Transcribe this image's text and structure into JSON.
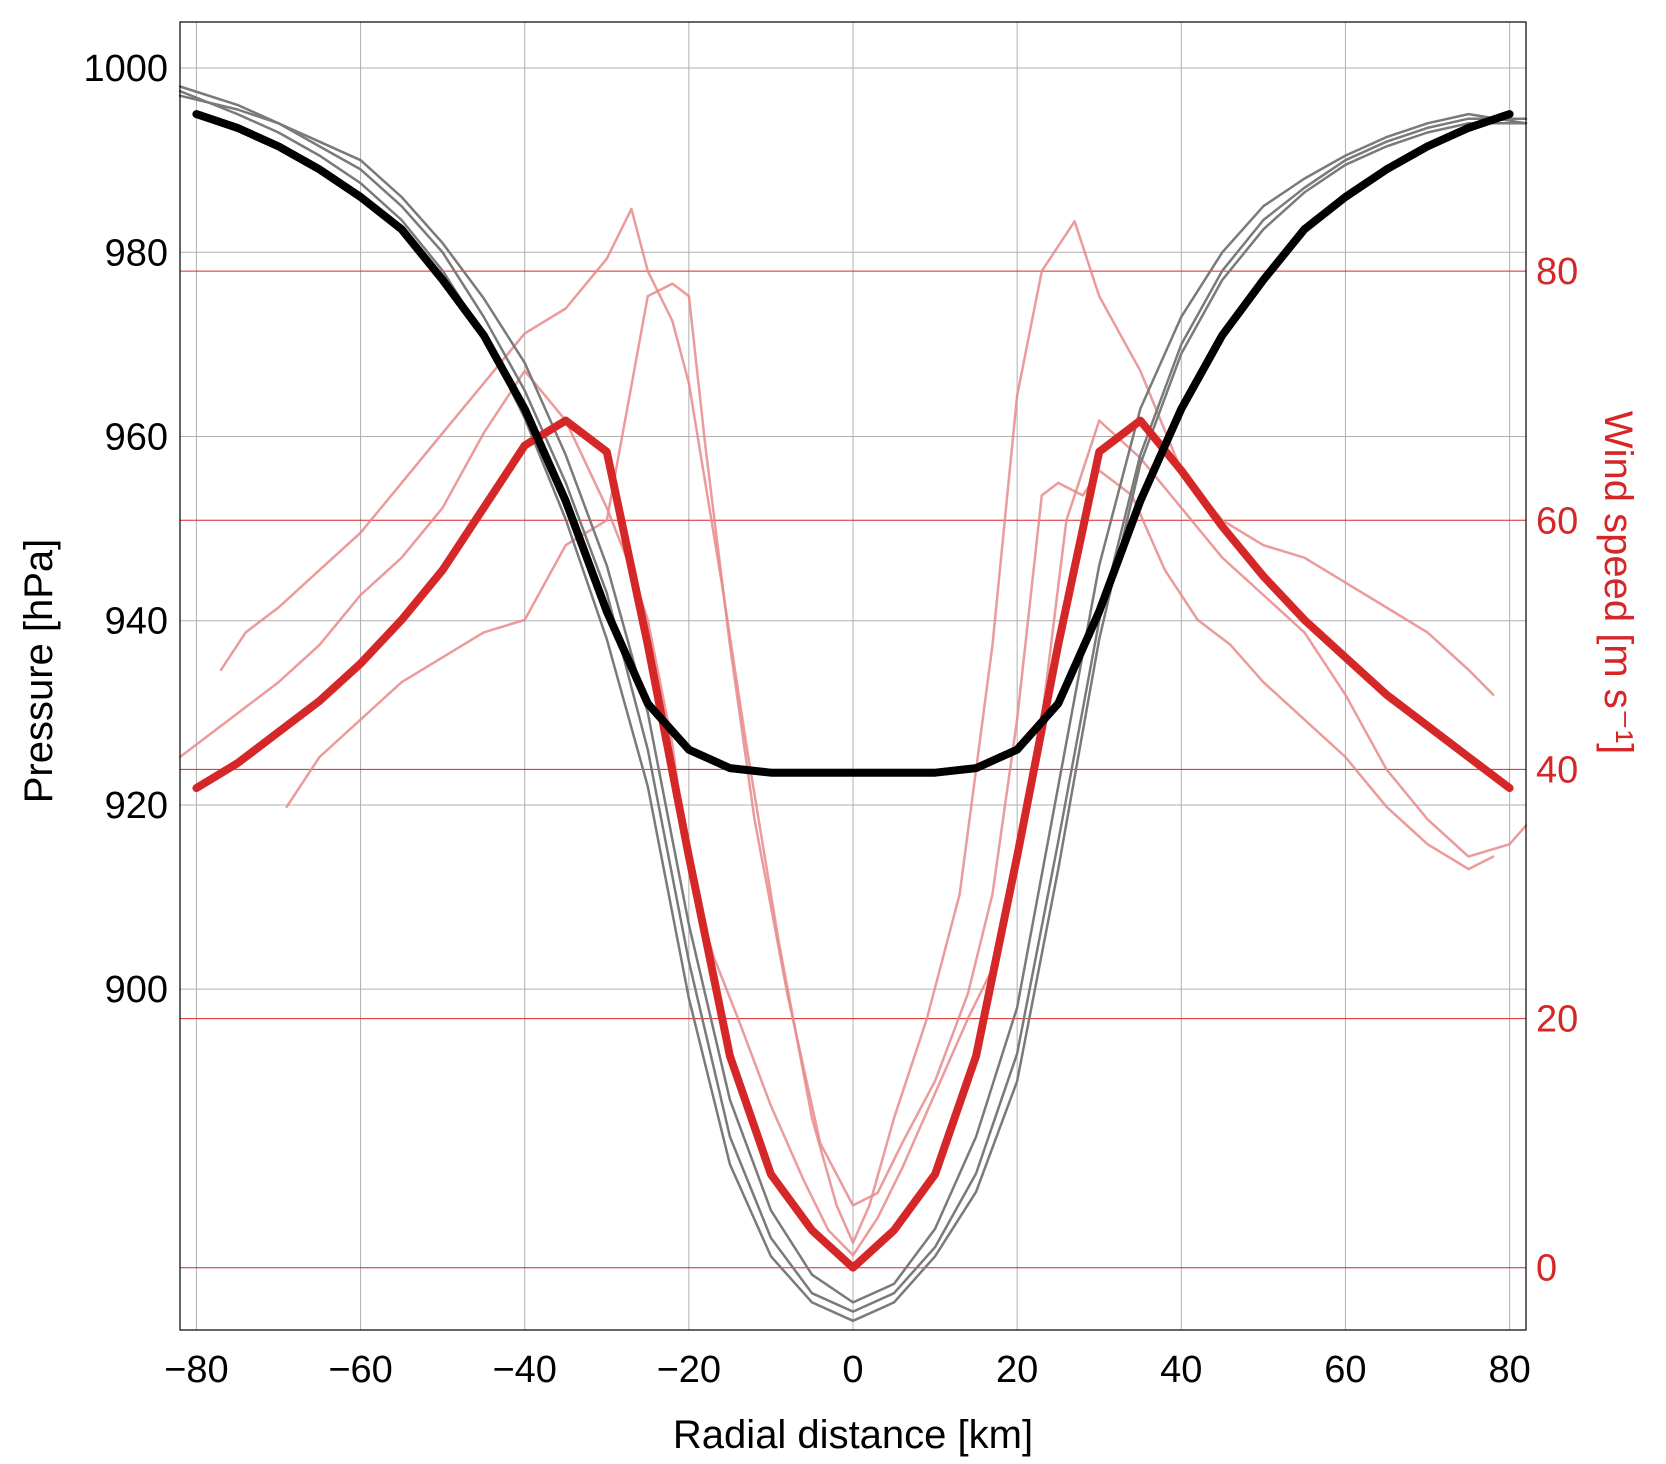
{
  "chart_data": {
    "type": "line",
    "title": "",
    "xlabel": "Radial distance [km]",
    "ylabel_left": "Pressure [hPa]",
    "ylabel_right": "Wind speed [m s⁻¹]",
    "xlim": [
      -82,
      82
    ],
    "ylim_left": [
      863,
      1005
    ],
    "ylim_right": [
      -5,
      100
    ],
    "xticks": [
      "−80",
      "−60",
      "−40",
      "−20",
      "0",
      "20",
      "40",
      "60",
      "80"
    ],
    "xtick_values": [
      -80,
      -60,
      -40,
      -20,
      0,
      20,
      40,
      60,
      80
    ],
    "yticks_left": [
      "1000",
      "980",
      "960",
      "940",
      "920",
      "900"
    ],
    "ytick_values_left": [
      1000,
      980,
      960,
      940,
      920,
      900
    ],
    "yticks_right": [
      "80",
      "60",
      "40",
      "20",
      "0"
    ],
    "ytick_values_right": [
      80,
      60,
      40,
      20,
      0
    ],
    "grid": true,
    "colors": {
      "pressure_model": "#000000",
      "pressure_obs": "#7a7a7a",
      "wind_model": "#d62728",
      "wind_obs": "#e88a8a",
      "right_axis": "#d62728",
      "grid": "#b0b0b0"
    },
    "series": [
      {
        "axis": "left",
        "role": "model",
        "x": [
          -80,
          -75,
          -70,
          -65,
          -60,
          -55,
          -50,
          -45,
          -40,
          -35,
          -30,
          -25,
          -20,
          -15,
          -10,
          -5,
          0,
          5,
          10,
          15,
          20,
          25,
          30,
          35,
          40,
          45,
          50,
          55,
          60,
          65,
          70,
          75,
          80
        ],
        "y": [
          995,
          993.5,
          991.5,
          989,
          986,
          982.5,
          977,
          971,
          963,
          953,
          941,
          931,
          926,
          924,
          923.5,
          923.5,
          923.5,
          923.5,
          923.5,
          924,
          926,
          931,
          941,
          953,
          963,
          971,
          977,
          982.5,
          986,
          989,
          991.5,
          993.5,
          995
        ]
      },
      {
        "axis": "left",
        "role": "observed",
        "x": [
          -82,
          -75,
          -70,
          -65,
          -60,
          -55,
          -50,
          -45,
          -40,
          -35,
          -30,
          -25,
          -20,
          -15,
          -10,
          -5,
          0,
          5,
          10,
          15,
          20,
          25,
          30,
          35,
          40,
          45,
          50,
          55,
          60,
          65,
          70,
          75,
          82
        ],
        "y": [
          997,
          995.5,
          994,
          992,
          990,
          986,
          981,
          975,
          968,
          958,
          946,
          930,
          907,
          888,
          876,
          869,
          866,
          868,
          874,
          884,
          898,
          922,
          946,
          963,
          973,
          980,
          985,
          988,
          990.5,
          992.5,
          994,
          995,
          994
        ]
      },
      {
        "axis": "left",
        "role": "observed",
        "x": [
          -82,
          -75,
          -70,
          -65,
          -60,
          -55,
          -50,
          -45,
          -40,
          -35,
          -30,
          -25,
          -20,
          -15,
          -10,
          -5,
          0,
          5,
          10,
          15,
          20,
          25,
          30,
          35,
          40,
          45,
          50,
          55,
          60,
          65,
          70,
          75,
          82
        ],
        "y": [
          998,
          996,
          994,
          991.5,
          989,
          985,
          980,
          973,
          965,
          955,
          943,
          926,
          903,
          884,
          873,
          867,
          865,
          867,
          872,
          880,
          893,
          916,
          940,
          958,
          970,
          978,
          983.5,
          987,
          990,
          992,
          993.5,
          994.5,
          994.5
        ]
      },
      {
        "axis": "left",
        "role": "observed",
        "x": [
          -82,
          -75,
          -70,
          -65,
          -60,
          -55,
          -50,
          -45,
          -40,
          -35,
          -30,
          -25,
          -20,
          -15,
          -10,
          -5,
          0,
          5,
          10,
          15,
          20,
          25,
          30,
          35,
          40,
          45,
          50,
          55,
          60,
          65,
          70,
          75,
          82
        ],
        "y": [
          997.5,
          995,
          993,
          990.5,
          987.5,
          983.5,
          978,
          971,
          962,
          951,
          938,
          922,
          899,
          881,
          871,
          866,
          864,
          866,
          871,
          878,
          890,
          913,
          938,
          957,
          969,
          977,
          982.5,
          986.5,
          989.5,
          991.5,
          993,
          994,
          994
        ]
      },
      {
        "axis": "right",
        "role": "model",
        "x": [
          -80,
          -75,
          -70,
          -65,
          -60,
          -55,
          -50,
          -45,
          -40,
          -35,
          -30,
          -25,
          -20,
          -15,
          -10,
          -5,
          0,
          5,
          10,
          15,
          20,
          25,
          30,
          35,
          40,
          45,
          50,
          55,
          60,
          65,
          70,
          75,
          80
        ],
        "y": [
          38.5,
          40.5,
          43,
          45.5,
          48.5,
          52,
          56,
          61,
          66,
          68,
          65.5,
          50,
          33,
          17,
          7.5,
          3,
          0,
          3,
          7.5,
          17,
          33,
          50,
          65.5,
          68,
          64,
          59.5,
          55.5,
          52,
          49,
          46,
          43.5,
          41,
          38.5
        ]
      },
      {
        "axis": "right",
        "role": "observed",
        "x": [
          -82,
          -78,
          -74,
          -70,
          -65,
          -60,
          -55,
          -50,
          -45,
          -40,
          -35,
          -30,
          -27,
          -25,
          -22,
          -20,
          -17,
          -14,
          -10,
          -6,
          -3,
          0,
          3,
          6,
          10,
          14,
          17,
          20,
          23,
          26,
          30,
          35,
          40,
          45,
          50,
          55,
          60,
          65,
          70,
          75,
          80,
          82
        ],
        "y": [
          41,
          43,
          45,
          47,
          50,
          54,
          57,
          61,
          67,
          72,
          68,
          61,
          56,
          52,
          42,
          32,
          25,
          20,
          13,
          7,
          3,
          1,
          4,
          8,
          14,
          20,
          24,
          33,
          44,
          60,
          68,
          65,
          61,
          57,
          54,
          51,
          46,
          40,
          36,
          33,
          34,
          35.5
        ]
      },
      {
        "axis": "right",
        "role": "observed",
        "x": [
          -77,
          -74,
          -70,
          -65,
          -60,
          -55,
          -50,
          -45,
          -40,
          -35,
          -30,
          -27,
          -25,
          -22,
          -20,
          -16,
          -13,
          -9,
          -5,
          -2,
          0,
          2,
          5,
          9,
          13,
          17,
          20,
          23,
          27,
          30,
          35,
          40,
          45,
          50,
          55,
          60,
          65,
          70,
          75,
          78
        ],
        "y": [
          48,
          51,
          53,
          56,
          59,
          63,
          67,
          71,
          75,
          77,
          81,
          85,
          80,
          76,
          71,
          55,
          42,
          26,
          12,
          5,
          2,
          5,
          12,
          20,
          30,
          50,
          70,
          80,
          84,
          78,
          72,
          64,
          60,
          58,
          57,
          55,
          53,
          51,
          48,
          46
        ]
      },
      {
        "axis": "right",
        "role": "observed",
        "x": [
          -69,
          -65,
          -60,
          -55,
          -50,
          -45,
          -40,
          -35,
          -30,
          -25,
          -22,
          -20,
          -18,
          -15,
          -12,
          -8,
          -4,
          0,
          3,
          6,
          10,
          14,
          17,
          20,
          23,
          25,
          28,
          30,
          34,
          38,
          42,
          46,
          50,
          55,
          60,
          65,
          70,
          75,
          78
        ],
        "y": [
          37,
          41,
          44,
          47,
          49,
          51,
          52,
          58,
          60,
          78,
          79,
          78,
          66,
          50,
          36,
          22,
          10,
          5,
          6,
          10,
          15,
          22,
          30,
          44,
          62,
          63,
          62,
          64,
          62,
          56,
          52,
          50,
          47,
          44,
          41,
          37,
          34,
          32,
          33
        ]
      }
    ]
  }
}
